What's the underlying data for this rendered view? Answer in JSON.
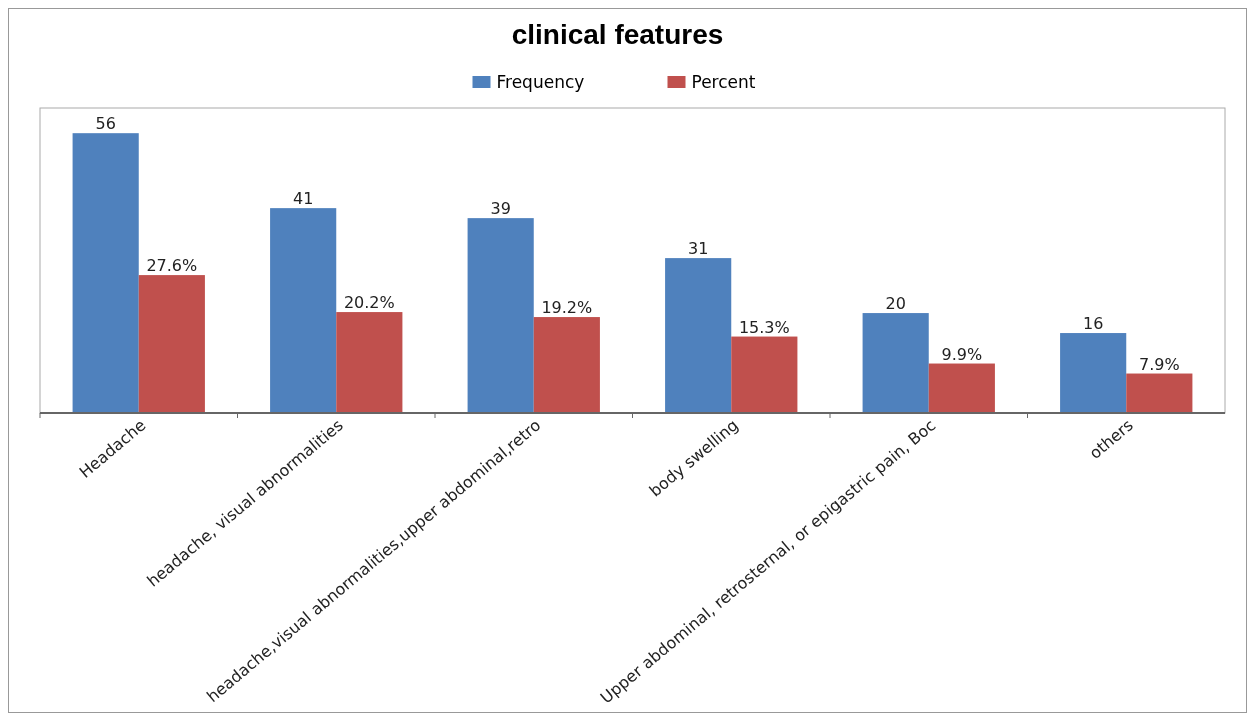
{
  "chart_data": {
    "type": "bar",
    "title": "clinical features",
    "categories": [
      "Headache",
      "headache, visual abnormalities",
      "headache,visual abnormalities,upper abdominal,retro",
      "body swelling",
      "Upper abdominal, retrosternal, or epigastric pain, Boc",
      "others"
    ],
    "series": [
      {
        "name": "Frequency",
        "color": "#4f81bd",
        "values": [
          56,
          41,
          39,
          31,
          20,
          16
        ],
        "value_labels": [
          "56",
          "41",
          "39",
          "31",
          "20",
          "16"
        ]
      },
      {
        "name": "Percent",
        "color": "#c0504d",
        "values": [
          27.6,
          20.2,
          19.2,
          15.3,
          9.9,
          7.9
        ],
        "value_labels": [
          "27.6%",
          "20.2%",
          "19.2%",
          "15.3%",
          "9.9%",
          "7.9%"
        ]
      }
    ],
    "legend": "top"
  }
}
